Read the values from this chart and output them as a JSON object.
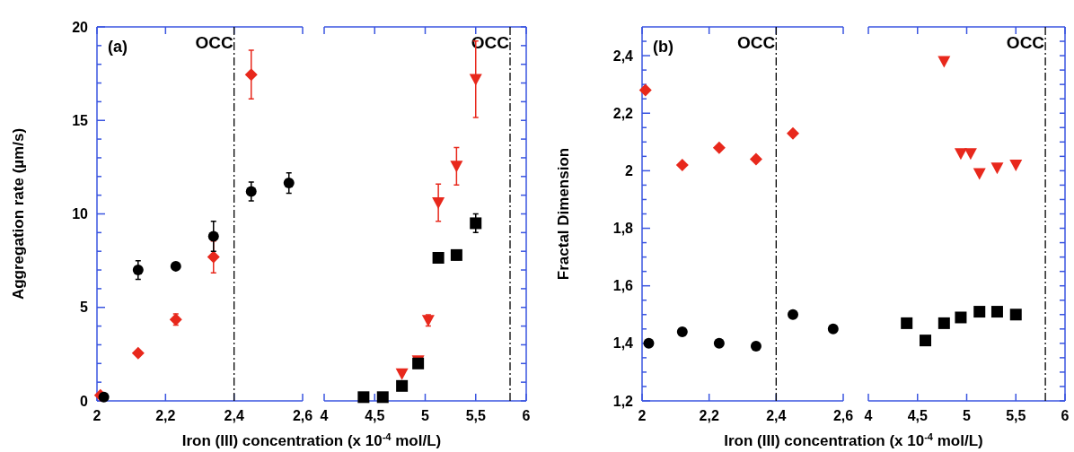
{
  "chart_data": [
    {
      "type": "scatter",
      "title": "(a)",
      "ylabel": "Aggregation rate (µm/s)",
      "xlabel": "Iron (III) concentration (x 10$^{-4}$ mol/L)",
      "xlim": [
        2,
        2.6
      ],
      "xticks": [
        2,
        {
          "value": 2.2,
          "label": "2,2"
        },
        {
          "value": 2.4,
          "label": "2,4"
        },
        {
          "value": 2.6,
          "label": "2,6"
        }
      ],
      "ylim": [
        0,
        20
      ],
      "yticks": [
        0,
        {
          "value": 1,
          "label": null
        },
        {
          "value": 2,
          "label": null
        },
        {
          "value": 3,
          "label": null
        },
        {
          "value": 4,
          "label": null
        },
        5,
        {
          "value": 6,
          "label": null
        },
        {
          "value": 7,
          "label": null
        },
        {
          "value": 8,
          "label": null
        },
        {
          "value": 9,
          "label": null
        },
        10,
        {
          "value": 11,
          "label": null
        },
        {
          "value": 12,
          "label": null
        },
        {
          "value": 13,
          "label": null
        },
        {
          "value": 14,
          "label": null
        },
        15,
        {
          "value": 16,
          "label": null
        },
        {
          "value": 17,
          "label": null
        },
        {
          "value": 18,
          "label": null
        },
        {
          "value": 19,
          "label": null
        },
        20
      ],
      "series": [
        {
          "color": "#000000",
          "marker": "circle",
          "x": [
            2.02,
            2.12,
            2.23,
            2.34,
            2.45,
            2.56
          ],
          "values": [
            0.2,
            7.0,
            7.2,
            8.8,
            11.2,
            11.65
          ],
          "errors": [
            null,
            0.5,
            null,
            0.8,
            0.5,
            0.55
          ]
        },
        {
          "color": "#e8281c",
          "marker": "diamond",
          "x": [
            2.01,
            2.12,
            2.23,
            2.34,
            2.45
          ],
          "values": [
            0.3,
            2.55,
            4.35,
            7.7,
            17.45
          ],
          "errors": [
            null,
            null,
            0.3,
            0.85,
            1.3
          ]
        }
      ],
      "ref_lines": [
        {
          "axis": "x",
          "value": 2.4,
          "label": "OCC",
          "color": "#000000",
          "line_style": "dashed"
        }
      ]
    },
    {
      "type": "scatter",
      "tick_labels": "x",
      "xlim": [
        4,
        6
      ],
      "xticks": [
        4,
        {
          "value": 4.5,
          "label": "4,5"
        },
        5,
        {
          "value": 5.5,
          "label": "5,5"
        },
        6
      ],
      "ylim": [
        0,
        20
      ],
      "yticks": [
        {
          "value": 0,
          "label": null
        },
        {
          "value": 1,
          "label": null
        },
        {
          "value": 2,
          "label": null
        },
        {
          "value": 3,
          "label": null
        },
        {
          "value": 4,
          "label": null
        },
        {
          "value": 5,
          "label": null
        },
        {
          "value": 6,
          "label": null
        },
        {
          "value": 7,
          "label": null
        },
        {
          "value": 8,
          "label": null
        },
        {
          "value": 9,
          "label": null
        },
        {
          "value": 10,
          "label": null
        },
        {
          "value": 11,
          "label": null
        },
        {
          "value": 12,
          "label": null
        },
        {
          "value": 13,
          "label": null
        },
        {
          "value": 14,
          "label": null
        },
        {
          "value": 15,
          "label": null
        },
        {
          "value": 16,
          "label": null
        },
        {
          "value": 17,
          "label": null
        },
        {
          "value": 18,
          "label": null
        },
        {
          "value": 19,
          "label": null
        },
        {
          "value": 20,
          "label": null
        }
      ],
      "series": [
        {
          "color": "#000000",
          "marker": "square",
          "x": [
            4.39,
            4.58,
            4.77,
            4.93,
            5.13,
            5.31,
            5.5
          ],
          "values": [
            0.2,
            0.2,
            0.8,
            2.0,
            7.65,
            7.8,
            9.5
          ],
          "errors": [
            null,
            null,
            null,
            null,
            0.25,
            0.25,
            0.5
          ]
        },
        {
          "color": "#e8281c",
          "marker": "triangle",
          "x": [
            4.77,
            4.93,
            5.03,
            5.13,
            5.31,
            5.5
          ],
          "values": [
            1.45,
            2.15,
            4.3,
            10.6,
            12.55,
            17.2
          ],
          "errors": [
            null,
            null,
            0.3,
            1.0,
            1.0,
            2.05
          ]
        }
      ],
      "ref_lines": [
        {
          "axis": "x",
          "value": 5.84,
          "label": "OCC",
          "color": "#000000",
          "line_style": "dashed"
        }
      ]
    },
    {
      "type": "scatter",
      "title": "(b)",
      "ylabel": "Fractal Dimension",
      "xlabel": "Iron (III) concentration (x 10$^{-4}$ mol/L)",
      "xlim": [
        2,
        2.6
      ],
      "xticks": [
        2,
        {
          "value": 2.2,
          "label": "2,2"
        },
        {
          "value": 2.4,
          "label": "2,4"
        },
        {
          "value": 2.6,
          "label": "2,6"
        }
      ],
      "ylim": [
        1.2,
        2.5
      ],
      "yticks": [
        {
          "value": 1.2,
          "label": "1,2"
        },
        {
          "value": 1.25,
          "label": null
        },
        {
          "value": 1.3,
          "label": null
        },
        {
          "value": 1.35,
          "label": null
        },
        {
          "value": 1.4,
          "label": "1,4"
        },
        {
          "value": 1.45,
          "label": null
        },
        {
          "value": 1.5,
          "label": null
        },
        {
          "value": 1.55,
          "label": null
        },
        {
          "value": 1.6,
          "label": "1,6"
        },
        {
          "value": 1.65,
          "label": null
        },
        {
          "value": 1.7,
          "label": null
        },
        {
          "value": 1.75,
          "label": null
        },
        {
          "value": 1.8,
          "label": "1,8"
        },
        {
          "value": 1.85,
          "label": null
        },
        {
          "value": 1.9,
          "label": null
        },
        {
          "value": 1.95,
          "label": null
        },
        2,
        {
          "value": 2.05,
          "label": null
        },
        {
          "value": 2.1,
          "label": null
        },
        {
          "value": 2.15,
          "label": null
        },
        {
          "value": 2.2,
          "label": "2,2"
        },
        {
          "value": 2.25,
          "label": null
        },
        {
          "value": 2.3,
          "label": null
        },
        {
          "value": 2.35,
          "label": null
        },
        {
          "value": 2.4,
          "label": "2,4"
        },
        {
          "value": 2.45,
          "label": null
        }
      ],
      "series": [
        {
          "color": "#000000",
          "marker": "circle",
          "x": [
            2.02,
            2.12,
            2.23,
            2.34,
            2.45,
            2.57
          ],
          "values": [
            1.4,
            1.44,
            1.4,
            1.39,
            1.5,
            1.45
          ]
        },
        {
          "color": "#e8281c",
          "marker": "diamond",
          "x": [
            2.01,
            2.12,
            2.23,
            2.34,
            2.45
          ],
          "values": [
            2.28,
            2.02,
            2.08,
            2.04,
            2.13
          ]
        }
      ],
      "ref_lines": [
        {
          "axis": "x",
          "value": 2.4,
          "label": "OCC",
          "color": "#000000",
          "line_style": "dashed"
        }
      ]
    },
    {
      "type": "scatter",
      "tick_labels": "x",
      "xlim": [
        4,
        6
      ],
      "xticks": [
        4,
        {
          "value": 4.5,
          "label": "4,5"
        },
        5,
        {
          "value": 5.5,
          "label": "5,5"
        },
        6
      ],
      "ylim": [
        1.2,
        2.5
      ],
      "yticks": [
        {
          "value": 1.2,
          "label": null
        },
        {
          "value": 1.25,
          "label": null
        },
        {
          "value": 1.3,
          "label": null
        },
        {
          "value": 1.35,
          "label": null
        },
        {
          "value": 1.4,
          "label": null
        },
        {
          "value": 1.45,
          "label": null
        },
        {
          "value": 1.5,
          "label": null
        },
        {
          "value": 1.55,
          "label": null
        },
        {
          "value": 1.6,
          "label": null
        },
        {
          "value": 1.65,
          "label": null
        },
        {
          "value": 1.7,
          "label": null
        },
        {
          "value": 1.75,
          "label": null
        },
        {
          "value": 1.8,
          "label": null
        },
        {
          "value": 1.85,
          "label": null
        },
        {
          "value": 1.9,
          "label": null
        },
        {
          "value": 1.95,
          "label": null
        },
        {
          "value": 2,
          "label": null
        },
        {
          "value": 2.05,
          "label": null
        },
        {
          "value": 2.1,
          "label": null
        },
        {
          "value": 2.15,
          "label": null
        },
        {
          "value": 2.2,
          "label": null
        },
        {
          "value": 2.25,
          "label": null
        },
        {
          "value": 2.3,
          "label": null
        },
        {
          "value": 2.35,
          "label": null
        },
        {
          "value": 2.4,
          "label": null
        },
        {
          "value": 2.45,
          "label": null
        }
      ],
      "series": [
        {
          "color": "#000000",
          "marker": "square",
          "x": [
            4.39,
            4.58,
            4.77,
            4.94,
            5.13,
            5.31,
            5.5
          ],
          "values": [
            1.47,
            1.41,
            1.47,
            1.49,
            1.51,
            1.51,
            1.5
          ]
        },
        {
          "color": "#e8281c",
          "marker": "triangle",
          "x": [
            4.77,
            4.94,
            5.04,
            5.13,
            5.31,
            5.5
          ],
          "values": [
            2.38,
            2.06,
            2.06,
            1.99,
            2.01,
            2.02
          ]
        }
      ],
      "ref_lines": [
        {
          "axis": "x",
          "value": 5.8,
          "label": "OCC",
          "color": "#000000",
          "line_style": "dashed"
        }
      ]
    }
  ]
}
